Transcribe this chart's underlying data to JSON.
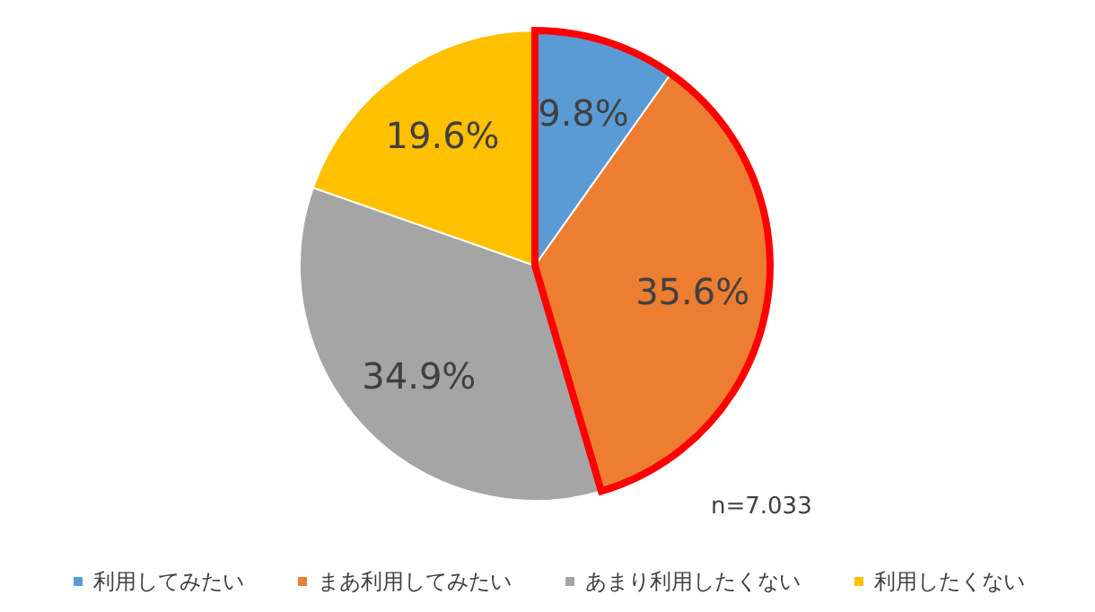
{
  "chart_data": {
    "type": "pie",
    "categories": [
      "利用してみたい",
      "まあ利用してみたい",
      "あまり利用したくない",
      "利用したくない"
    ],
    "values": [
      9.8,
      35.6,
      34.9,
      19.6
    ],
    "colors": [
      "#5b9bd5",
      "#ed7d31",
      "#a5a5a5",
      "#ffc000"
    ],
    "value_labels": [
      "9.8%",
      "35.6%",
      "34.9%",
      "19.6%"
    ],
    "legend": "bottom",
    "annotations": [
      "n=7.033"
    ]
  }
}
